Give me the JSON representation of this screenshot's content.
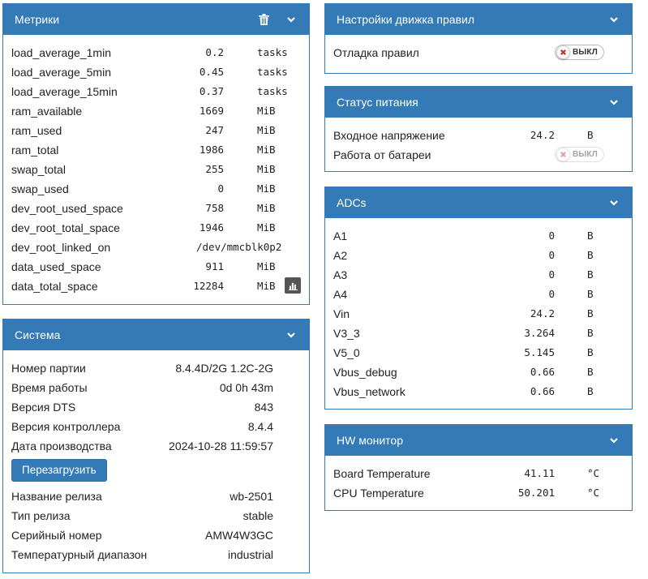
{
  "colors": {
    "accent": "#337ab7",
    "danger": "#c9302c"
  },
  "metrics": {
    "title": "Метрики",
    "rows": [
      {
        "label": "load_average_1min",
        "value": "0.2",
        "unit": "tasks"
      },
      {
        "label": "load_average_5min",
        "value": "0.45",
        "unit": "tasks"
      },
      {
        "label": "load_average_15min",
        "value": "0.37",
        "unit": "tasks"
      },
      {
        "label": "ram_available",
        "value": "1669",
        "unit": "MiB"
      },
      {
        "label": "ram_used",
        "value": "247",
        "unit": "MiB"
      },
      {
        "label": "ram_total",
        "value": "1986",
        "unit": "MiB"
      },
      {
        "label": "swap_total",
        "value": "255",
        "unit": "MiB"
      },
      {
        "label": "swap_used",
        "value": "0",
        "unit": "MiB"
      },
      {
        "label": "dev_root_used_space",
        "value": "758",
        "unit": "MiB"
      },
      {
        "label": "dev_root_total_space",
        "value": "1946",
        "unit": "MiB"
      },
      {
        "label": "dev_root_linked_on",
        "value": "/dev/mmcblk0p2",
        "unit": ""
      },
      {
        "label": "data_used_space",
        "value": "911",
        "unit": "MiB"
      },
      {
        "label": "data_total_space",
        "value": "12284",
        "unit": "MiB"
      }
    ]
  },
  "system": {
    "title": "Система",
    "rows_top": [
      {
        "label": "Номер партии",
        "value": "8.4.4D/2G 1.2C-2G"
      },
      {
        "label": "Время работы",
        "value": "0d 0h 43m"
      },
      {
        "label": "Версия DTS",
        "value": "843"
      },
      {
        "label": "Версия контроллера",
        "value": "8.4.4"
      },
      {
        "label": "Дата производства",
        "value": "2024-10-28 11:59:57"
      }
    ],
    "reboot_label": "Перезагрузить",
    "rows_bottom": [
      {
        "label": "Название релиза",
        "value": "wb-2501"
      },
      {
        "label": "Тип релиза",
        "value": "stable"
      },
      {
        "label": "Серийный номер",
        "value": "AMW4W3GC"
      },
      {
        "label": "Температурный диапазон",
        "value": "industrial"
      }
    ]
  },
  "rules_engine": {
    "title": "Настройки движка правил",
    "debug_label": "Отладка правил",
    "debug_toggle": "ВЫКЛ"
  },
  "power": {
    "title": "Статус питания",
    "input_voltage_label": "Входное напряжение",
    "input_voltage_value": "24.2",
    "input_voltage_unit": "В",
    "battery_label": "Работа от батареи",
    "battery_toggle": "ВЫКЛ"
  },
  "adcs": {
    "title": "ADCs",
    "rows": [
      {
        "label": "A1",
        "value": "0",
        "unit": "В"
      },
      {
        "label": "A2",
        "value": "0",
        "unit": "В"
      },
      {
        "label": "A3",
        "value": "0",
        "unit": "В"
      },
      {
        "label": "A4",
        "value": "0",
        "unit": "В"
      },
      {
        "label": "Vin",
        "value": "24.2",
        "unit": "В"
      },
      {
        "label": "V3_3",
        "value": "3.264",
        "unit": "В"
      },
      {
        "label": "V5_0",
        "value": "5.145",
        "unit": "В"
      },
      {
        "label": "Vbus_debug",
        "value": "0.66",
        "unit": "В"
      },
      {
        "label": "Vbus_network",
        "value": "0.66",
        "unit": "В"
      }
    ]
  },
  "hw_monitor": {
    "title": "HW монитор",
    "rows": [
      {
        "label": "Board Temperature",
        "value": "41.11",
        "unit": "°C"
      },
      {
        "label": "CPU Temperature",
        "value": "50.201",
        "unit": "°C"
      }
    ]
  }
}
